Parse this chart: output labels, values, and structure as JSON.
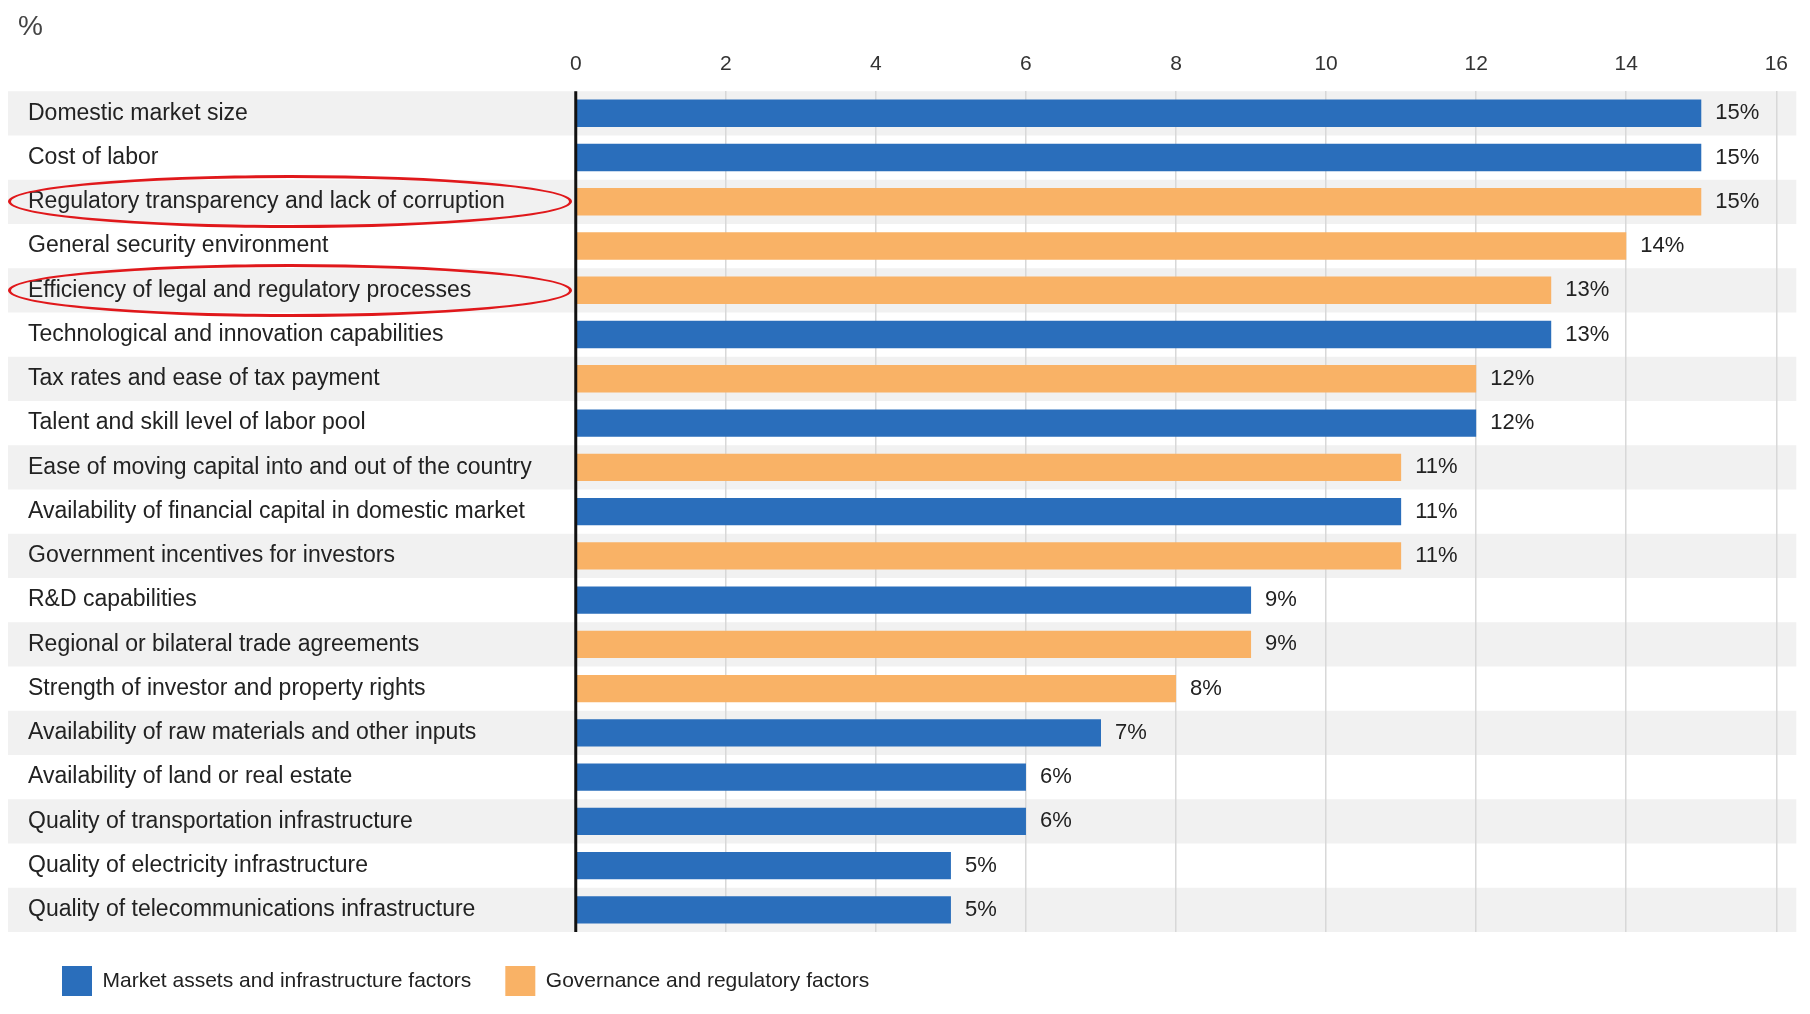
{
  "chart_data": {
    "type": "bar",
    "orientation": "horizontal",
    "stacked": true,
    "xlabel": "%",
    "categories": [
      "Domestic market size",
      "Cost of labor",
      "Regulatory transparency and lack of corruption",
      "General security environment",
      "Efficiency of legal and regulatory processes",
      "Technological and innovation capabilities",
      "Tax rates and ease of tax payment",
      "Talent and skill level of labor pool",
      "Ease of moving capital into and out of the country",
      "Availability of financial capital in domestic market",
      "Government incentives for investors",
      "R&D capabilities",
      "Regional or bilateral trade agreements",
      "Strength of investor and property rights",
      "Availability of raw materials and other inputs",
      "Availability of land or real estate",
      "Quality of transportation infrastructure",
      "Quality of electricity infrastructure",
      "Quality of telecommunications infrastructure"
    ],
    "series": [
      {
        "name": "Market assets and infrastructure factors",
        "color": "#2a6ebb",
        "values": [
          15,
          15,
          null,
          null,
          null,
          13,
          null,
          12,
          null,
          11,
          null,
          9,
          null,
          null,
          7,
          6,
          6,
          5,
          5
        ],
        "value_labels": [
          "15%",
          "15%",
          null,
          null,
          null,
          "13%",
          null,
          "12%",
          null,
          "11%",
          null,
          "9%",
          null,
          null,
          "7%",
          "6%",
          "6%",
          "5%",
          "5%"
        ]
      },
      {
        "name": "Governance and regulatory factors",
        "color": "#f9b266",
        "values": [
          null,
          null,
          15,
          14,
          13,
          null,
          12,
          null,
          11,
          null,
          11,
          null,
          9,
          8,
          null,
          null,
          null,
          null,
          null
        ],
        "value_labels": [
          null,
          null,
          "15%",
          "14%",
          "13%",
          null,
          "12%",
          null,
          "11%",
          null,
          "11%",
          null,
          "9%",
          "8%",
          null,
          null,
          null,
          null,
          null
        ]
      }
    ],
    "xlim": [
      0,
      16
    ],
    "xticks": [
      0,
      2,
      4,
      6,
      8,
      10,
      12,
      14,
      16
    ],
    "grid": "x",
    "legend": "bottom left"
  }
}
